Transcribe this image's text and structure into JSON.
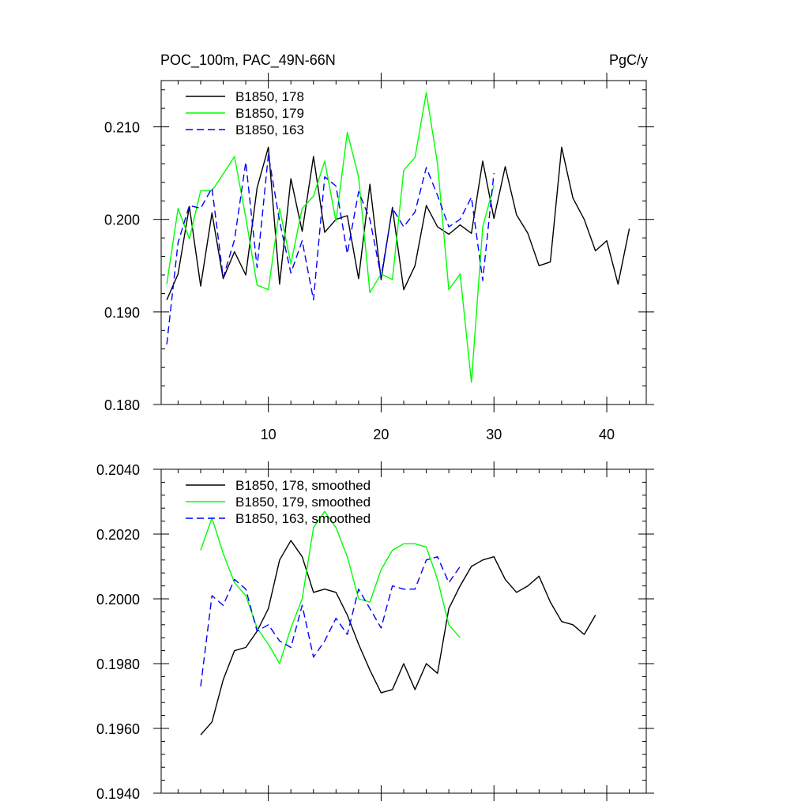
{
  "chart_data": [
    {
      "type": "line",
      "title_left": "POC_100m, PAC_49N-66N",
      "title_right": "PgC/y",
      "xlim": [
        0.5,
        43.5
      ],
      "ylim": [
        0.18,
        0.215
      ],
      "x_ticks": [
        10,
        20,
        30,
        40
      ],
      "x_tick_labels": [
        "10",
        "20",
        "30",
        "40"
      ],
      "y_ticks": [
        0.18,
        0.19,
        0.2,
        0.21
      ],
      "y_tick_labels": [
        "0.180",
        "0.190",
        "0.200",
        "0.210"
      ],
      "legend": [
        "B1850, 178",
        "B1850, 179",
        "B1850, 163"
      ],
      "legend_position": "top-left",
      "series": [
        {
          "name": "B1850, 178",
          "color": "#000000",
          "dash": "solid",
          "x": [
            1,
            2,
            3,
            4,
            5,
            6,
            7,
            8,
            9,
            10,
            11,
            12,
            13,
            14,
            15,
            16,
            17,
            18,
            19,
            20,
            21,
            22,
            23,
            24,
            25,
            26,
            27,
            28,
            29,
            30,
            31,
            32,
            33,
            34,
            35,
            36,
            37,
            38,
            39,
            40,
            41,
            42
          ],
          "y": [
            0.1913,
            0.1941,
            0.2014,
            0.1928,
            0.2007,
            0.1936,
            0.1965,
            0.194,
            0.2034,
            0.2078,
            0.193,
            0.2044,
            0.1987,
            0.2068,
            0.1986,
            0.2,
            0.2004,
            0.1936,
            0.2038,
            0.1935,
            0.2013,
            0.1924,
            0.195,
            0.2015,
            0.1992,
            0.1984,
            0.1994,
            0.1985,
            0.2063,
            0.2001,
            0.2057,
            0.2005,
            0.1985,
            0.195,
            0.1954,
            0.2078,
            0.2023,
            0.2,
            0.1966,
            0.1977,
            0.193,
            0.199
          ]
        },
        {
          "name": "B1850, 179",
          "color": "#00ff00",
          "dash": "solid",
          "x": [
            1,
            2,
            3,
            4,
            5,
            6,
            7,
            8,
            9,
            10,
            11,
            12,
            13,
            14,
            15,
            16,
            17,
            18,
            19,
            20,
            21,
            22,
            23,
            24,
            25,
            26,
            27,
            28,
            29,
            30
          ],
          "y": [
            0.193,
            0.2012,
            0.1979,
            0.2031,
            0.2031,
            0.2049,
            0.2068,
            0.2002,
            0.1929,
            0.1924,
            0.2012,
            0.1952,
            0.2012,
            0.2025,
            0.2063,
            0.1998,
            0.2094,
            0.2046,
            0.1921,
            0.1941,
            0.1935,
            0.2053,
            0.2067,
            0.2137,
            0.206,
            0.1924,
            0.1941,
            0.1824,
            0.1992,
            0.2037
          ]
        },
        {
          "name": "B1850, 163",
          "color": "#0000ff",
          "dash": "dashed",
          "x": [
            1,
            2,
            3,
            4,
            5,
            6,
            7,
            8,
            9,
            10,
            11,
            12,
            13,
            14,
            15,
            16,
            17,
            18,
            19,
            20,
            21,
            22,
            23,
            24,
            25,
            26,
            27,
            28,
            29,
            30
          ],
          "y": [
            0.1865,
            0.1975,
            0.2015,
            0.2012,
            0.2034,
            0.1937,
            0.1978,
            0.2062,
            0.1948,
            0.207,
            0.1998,
            0.1942,
            0.1977,
            0.1913,
            0.2046,
            0.2036,
            0.1963,
            0.203,
            0.2,
            0.1938,
            0.2012,
            0.1992,
            0.2008,
            0.2056,
            0.2026,
            0.1992,
            0.2,
            0.2024,
            0.1934,
            0.205
          ]
        }
      ]
    },
    {
      "type": "line",
      "xlim": [
        0.5,
        43.5
      ],
      "ylim": [
        0.194,
        0.204
      ],
      "y_ticks": [
        0.194,
        0.196,
        0.198,
        0.2,
        0.202,
        0.204
      ],
      "y_tick_labels": [
        "0.1940",
        "0.1960",
        "0.1980",
        "0.2000",
        "0.2020",
        "0.2040"
      ],
      "legend": [
        "B1850, 178, smoothed",
        "B1850, 179, smoothed",
        "B1850, 163, smoothed"
      ],
      "legend_position": "top-left",
      "series": [
        {
          "name": "B1850, 178, smoothed",
          "color": "#000000",
          "dash": "solid",
          "x": [
            4,
            5,
            6,
            7,
            8,
            9,
            10,
            11,
            12,
            13,
            14,
            15,
            16,
            17,
            18,
            19,
            20,
            21,
            22,
            23,
            24,
            25,
            26,
            27,
            28,
            29,
            30,
            31,
            32,
            33,
            34,
            35,
            36,
            37,
            38,
            39
          ],
          "y": [
            0.1958,
            0.1962,
            0.1975,
            0.1984,
            0.1985,
            0.199,
            0.1997,
            0.2012,
            0.2018,
            0.2013,
            0.2002,
            0.2003,
            0.2002,
            0.1995,
            0.1986,
            0.1978,
            0.1971,
            0.1972,
            0.198,
            0.1972,
            0.198,
            0.1977,
            0.1997,
            0.2004,
            0.201,
            0.2012,
            0.2013,
            0.2006,
            0.2002,
            0.2004,
            0.2007,
            0.1999,
            0.1993,
            0.1992,
            0.1989,
            0.1995
          ]
        },
        {
          "name": "B1850, 179, smoothed",
          "color": "#00ff00",
          "dash": "solid",
          "x": [
            4,
            5,
            6,
            7,
            8,
            9,
            10,
            11,
            12,
            13,
            14,
            15,
            16,
            17,
            18,
            19,
            20,
            21,
            22,
            23,
            24,
            25,
            26,
            27
          ],
          "y": [
            0.2015,
            0.2025,
            0.2014,
            0.2005,
            0.2001,
            0.1991,
            0.1986,
            0.198,
            0.1991,
            0.2,
            0.2022,
            0.2027,
            0.2022,
            0.2013,
            0.2,
            0.1999,
            0.2009,
            0.2015,
            0.2017,
            0.2017,
            0.2016,
            0.2006,
            0.1992,
            0.1988
          ]
        },
        {
          "name": "B1850, 163, smoothed",
          "color": "#0000ff",
          "dash": "dashed",
          "x": [
            4,
            5,
            6,
            7,
            8,
            9,
            10,
            11,
            12,
            13,
            14,
            15,
            16,
            17,
            18,
            19,
            20,
            21,
            22,
            23,
            24,
            25,
            26,
            27
          ],
          "y": [
            0.1973,
            0.2001,
            0.1998,
            0.2006,
            0.2003,
            0.199,
            0.1992,
            0.1987,
            0.1985,
            0.1998,
            0.1982,
            0.1987,
            0.1994,
            0.1989,
            0.2003,
            0.1997,
            0.1991,
            0.2004,
            0.2003,
            0.2003,
            0.2012,
            0.2013,
            0.2005,
            0.201
          ]
        }
      ]
    }
  ]
}
